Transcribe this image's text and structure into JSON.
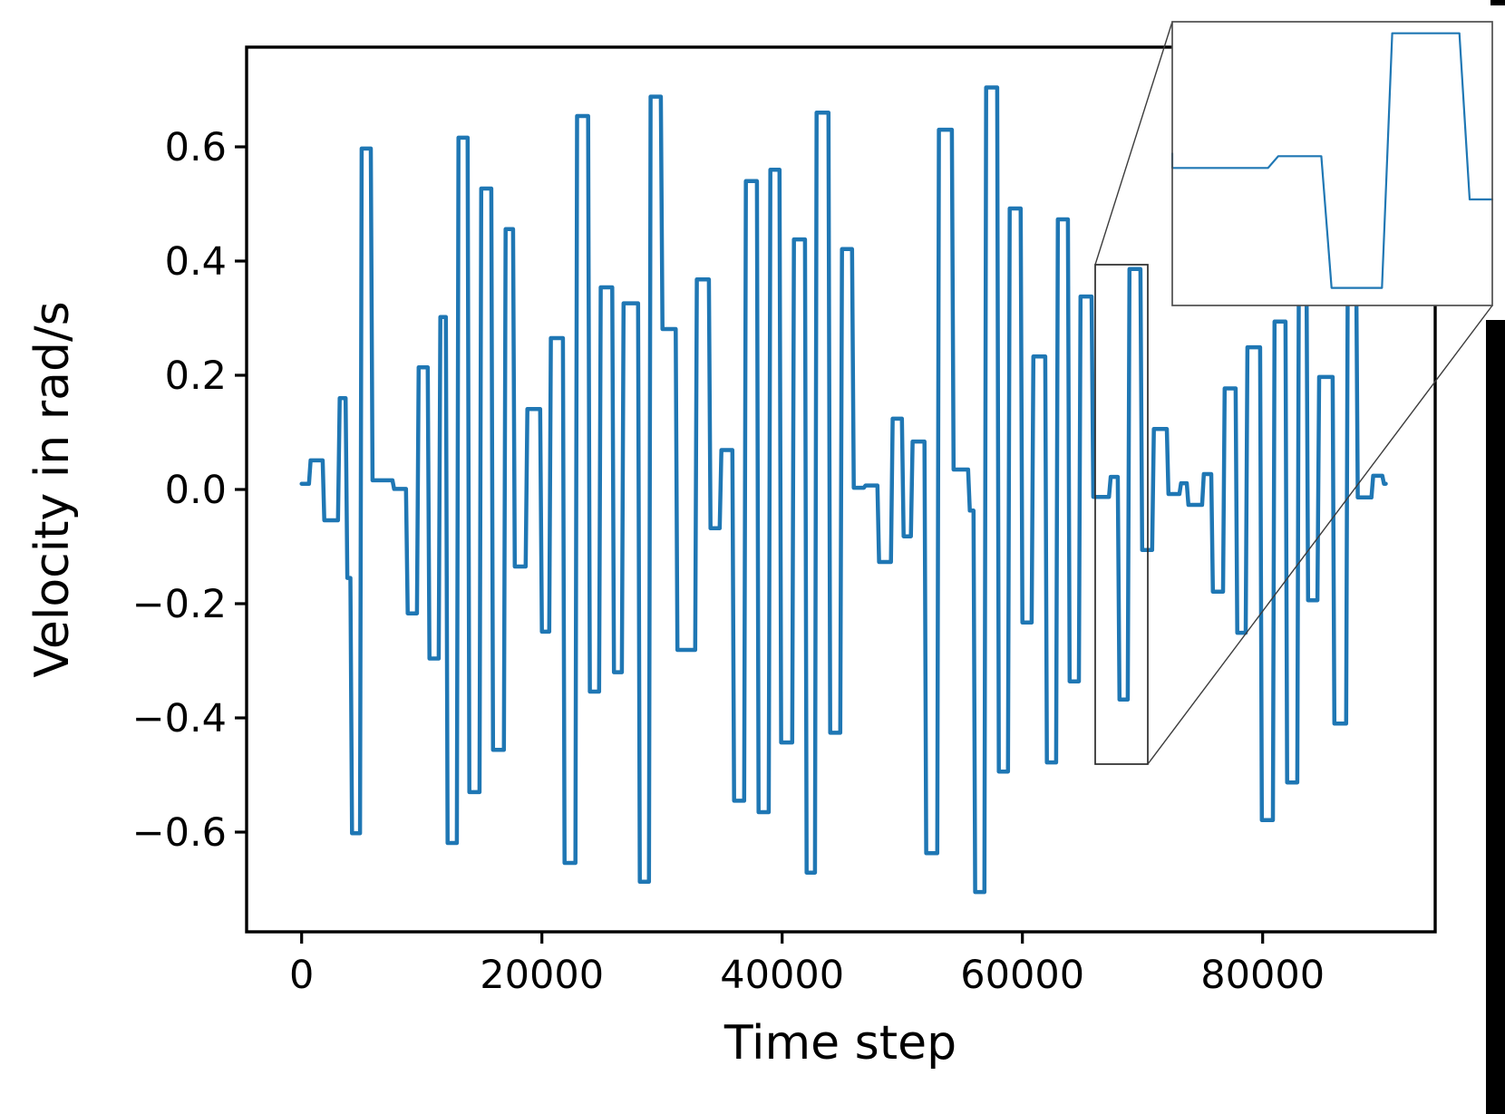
{
  "chart_data": {
    "type": "line",
    "title": "",
    "xlabel": "Time step",
    "ylabel": "Velocity in rad/s",
    "xlim": [
      -4600,
      94340
    ],
    "ylim": [
      -0.775,
      0.775
    ],
    "grid": false,
    "legend": null,
    "x_ticks": [
      {
        "value": 0,
        "label": "0"
      },
      {
        "value": 20000,
        "label": "20000"
      },
      {
        "value": 40000,
        "label": "40000"
      },
      {
        "value": 60000,
        "label": "60000"
      },
      {
        "value": 80000,
        "label": "80000"
      }
    ],
    "y_ticks": [
      {
        "value": 0.6,
        "label": "0.6"
      },
      {
        "value": 0.4,
        "label": "0.4"
      },
      {
        "value": 0.2,
        "label": "0.2"
      },
      {
        "value": 0.0,
        "label": "0.0"
      },
      {
        "value": -0.2,
        "label": "−0.2"
      },
      {
        "value": -0.4,
        "label": "−0.4"
      },
      {
        "value": -0.6,
        "label": "−0.6"
      }
    ],
    "series": [
      {
        "name": "velocity",
        "color": "#1f77b4",
        "line_width": 4.5,
        "transition_steps": 140,
        "t_end": 90250,
        "segments_t_v": [
          [
            0,
            0.01
          ],
          [
            750,
            0.051
          ],
          [
            1890,
            -0.054
          ],
          [
            3170,
            0.16
          ],
          [
            3800,
            -0.155
          ],
          [
            4200,
            -0.602
          ],
          [
            5000,
            0.597
          ],
          [
            5900,
            0.016
          ],
          [
            7700,
            0.001
          ],
          [
            8830,
            -0.217
          ],
          [
            9740,
            0.214
          ],
          [
            10640,
            -0.296
          ],
          [
            11550,
            0.302
          ],
          [
            12150,
            -0.619
          ],
          [
            13060,
            0.616
          ],
          [
            13960,
            -0.53
          ],
          [
            14950,
            0.527
          ],
          [
            15930,
            -0.456
          ],
          [
            16980,
            0.456
          ],
          [
            17740,
            -0.135
          ],
          [
            18790,
            0.141
          ],
          [
            20000,
            -0.249
          ],
          [
            20750,
            0.265
          ],
          [
            21890,
            -0.654
          ],
          [
            22930,
            0.654
          ],
          [
            23990,
            -0.354
          ],
          [
            24900,
            0.354
          ],
          [
            26000,
            -0.32
          ],
          [
            26800,
            0.326
          ],
          [
            28150,
            -0.687
          ],
          [
            29050,
            0.688
          ],
          [
            30040,
            0.281
          ],
          [
            31280,
            -0.281
          ],
          [
            32900,
            0.368
          ],
          [
            34040,
            -0.068
          ],
          [
            34940,
            0.069
          ],
          [
            36000,
            -0.545
          ],
          [
            36980,
            0.54
          ],
          [
            38040,
            -0.565
          ],
          [
            39020,
            0.56
          ],
          [
            39920,
            -0.443
          ],
          [
            40980,
            0.438
          ],
          [
            42040,
            -0.671
          ],
          [
            42870,
            0.66
          ],
          [
            44000,
            -0.426
          ],
          [
            44980,
            0.421
          ],
          [
            45960,
            0.003
          ],
          [
            46940,
            0.007
          ],
          [
            48070,
            -0.127
          ],
          [
            49200,
            0.124
          ],
          [
            50110,
            -0.082
          ],
          [
            50860,
            0.084
          ],
          [
            51990,
            -0.637
          ],
          [
            53050,
            0.63
          ],
          [
            54270,
            0.035
          ],
          [
            55620,
            -0.037
          ],
          [
            56070,
            -0.705
          ],
          [
            56980,
            0.704
          ],
          [
            58040,
            -0.494
          ],
          [
            58940,
            0.492
          ],
          [
            60000,
            -0.233
          ],
          [
            60910,
            0.233
          ],
          [
            62040,
            -0.478
          ],
          [
            62950,
            0.473
          ],
          [
            63930,
            -0.336
          ],
          [
            64840,
            0.338
          ],
          [
            65900,
            -0.013
          ],
          [
            67350,
            0.022
          ],
          [
            68080,
            -0.368
          ],
          [
            68910,
            0.386
          ],
          [
            69970,
            -0.106
          ],
          [
            70940,
            0.106
          ],
          [
            72160,
            -0.008
          ],
          [
            73210,
            0.011
          ],
          [
            73820,
            -0.027
          ],
          [
            75100,
            0.027
          ],
          [
            75860,
            -0.179
          ],
          [
            76840,
            0.177
          ],
          [
            77890,
            -0.251
          ],
          [
            78730,
            0.249
          ],
          [
            79930,
            -0.579
          ],
          [
            80990,
            0.294
          ],
          [
            82040,
            -0.513
          ],
          [
            83020,
            0.43
          ],
          [
            83780,
            -0.194
          ],
          [
            84700,
            0.197
          ],
          [
            85970,
            -0.41
          ],
          [
            87090,
            0.405
          ],
          [
            87920,
            -0.014
          ],
          [
            89200,
            0.024
          ],
          [
            90100,
            0.01
          ]
        ]
      }
    ],
    "inset": {
      "t_window": [
        65900,
        70280
      ],
      "v_window": [
        -0.42,
        0.42
      ],
      "start_tick_value": 0.03
    },
    "zoom_indicator": {
      "t_range": [
        66060,
        70440
      ],
      "v_range": [
        -0.48,
        0.394
      ]
    }
  },
  "decor": {
    "crop_bar_color": "#000000"
  }
}
